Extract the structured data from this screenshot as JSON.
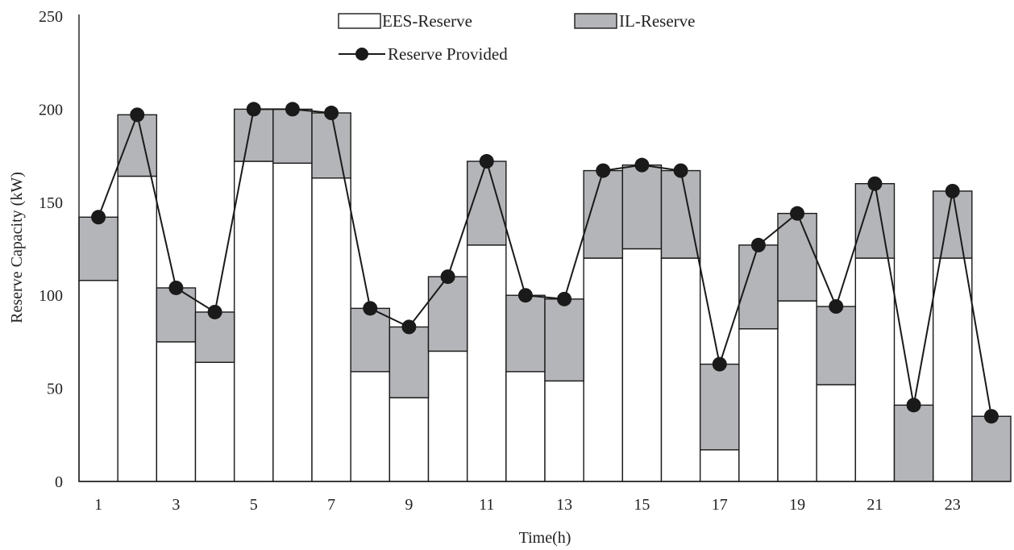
{
  "chart_data": {
    "type": "bar",
    "stacked": true,
    "title": "",
    "xlabel": "Time(h)",
    "ylabel": "Reserve Capacity (kW)",
    "ylim": [
      0,
      250
    ],
    "yticks": [
      0,
      50,
      100,
      150,
      200,
      250
    ],
    "categories": [
      "1",
      "2",
      "3",
      "4",
      "5",
      "6",
      "7",
      "8",
      "9",
      "10",
      "11",
      "12",
      "13",
      "14",
      "15",
      "16",
      "17",
      "18",
      "19",
      "20",
      "21",
      "22",
      "23",
      "24"
    ],
    "x_tick_labels_shown": [
      "1",
      "3",
      "5",
      "7",
      "9",
      "11",
      "13",
      "15",
      "17",
      "19",
      "21",
      "23"
    ],
    "grid": false,
    "legend_position": "top",
    "series": [
      {
        "name": "EES-Reserve",
        "kind": "bar",
        "color": "#ffffff",
        "values": [
          108,
          164,
          75,
          64,
          172,
          171,
          163,
          59,
          45,
          70,
          127,
          59,
          54,
          120,
          125,
          120,
          17,
          82,
          97,
          52,
          120,
          0,
          120,
          0
        ]
      },
      {
        "name": "IL-Reserve",
        "kind": "bar",
        "color": "#b4b5b8",
        "values": [
          34,
          33,
          29,
          27,
          28,
          29,
          35,
          34,
          38,
          40,
          45,
          41,
          44,
          47,
          45,
          47,
          46,
          45,
          47,
          42,
          40,
          41,
          36,
          35
        ]
      },
      {
        "name": "Reserve Provided",
        "kind": "line",
        "color": "#1a1a1a",
        "values": [
          142,
          197,
          104,
          91,
          200,
          200,
          198,
          93,
          83,
          110,
          172,
          100,
          98,
          167,
          170,
          167,
          63,
          127,
          144,
          94,
          160,
          41,
          156,
          35
        ]
      }
    ]
  }
}
